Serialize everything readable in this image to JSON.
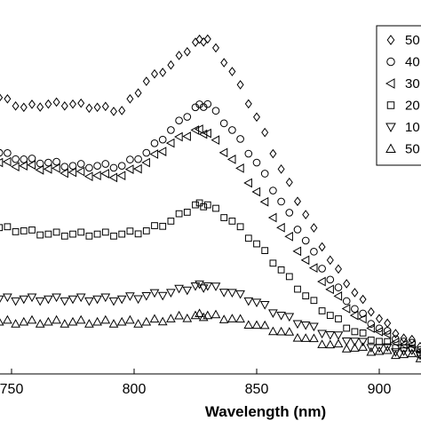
{
  "chart_data": {
    "type": "scatter",
    "xlabel": "Wavelength (nm)",
    "ylabel": "",
    "xlim": [
      733,
      925
    ],
    "ylim": [
      -0.05,
      1.1
    ],
    "grid": false,
    "legend_position": "top-right",
    "x_ticks": [
      {
        "value": 750,
        "label": "750"
      },
      {
        "value": 800,
        "label": "800"
      },
      {
        "value": 850,
        "label": "850"
      },
      {
        "value": 900,
        "label": "900"
      }
    ],
    "series": [
      {
        "name": "50",
        "marker": "diamond",
        "x": [
          735,
          745,
          755,
          765,
          775,
          785,
          795,
          805,
          815,
          825,
          830,
          840,
          850,
          860,
          870,
          880,
          890,
          900,
          910,
          920
        ],
        "y": [
          0.81,
          0.8,
          0.77,
          0.78,
          0.78,
          0.77,
          0.76,
          0.85,
          0.9,
          0.97,
          0.98,
          0.88,
          0.74,
          0.58,
          0.44,
          0.3,
          0.2,
          0.12,
          0.06,
          0.03
        ]
      },
      {
        "name": "40",
        "marker": "circle",
        "x": [
          735,
          745,
          755,
          765,
          775,
          785,
          795,
          805,
          815,
          825,
          830,
          840,
          850,
          860,
          870,
          880,
          890,
          900,
          910,
          920
        ],
        "y": [
          0.62,
          0.63,
          0.61,
          0.6,
          0.59,
          0.59,
          0.59,
          0.63,
          0.7,
          0.77,
          0.78,
          0.7,
          0.6,
          0.48,
          0.36,
          0.24,
          0.15,
          0.09,
          0.05,
          0.02
        ]
      },
      {
        "name": "30",
        "marker": "triangle-left",
        "x": [
          735,
          745,
          755,
          765,
          775,
          785,
          795,
          805,
          815,
          825,
          830,
          840,
          850,
          860,
          870,
          880,
          890,
          900,
          910,
          920
        ],
        "y": [
          0.61,
          0.6,
          0.59,
          0.58,
          0.57,
          0.56,
          0.56,
          0.6,
          0.66,
          0.7,
          0.69,
          0.61,
          0.51,
          0.4,
          0.3,
          0.21,
          0.13,
          0.08,
          0.04,
          0.02
        ]
      },
      {
        "name": "20",
        "marker": "square",
        "x": [
          735,
          745,
          755,
          765,
          775,
          785,
          795,
          805,
          815,
          825,
          830,
          840,
          850,
          860,
          870,
          880,
          890,
          900,
          910,
          920
        ],
        "y": [
          0.4,
          0.4,
          0.39,
          0.38,
          0.38,
          0.38,
          0.38,
          0.39,
          0.42,
          0.47,
          0.47,
          0.42,
          0.35,
          0.27,
          0.19,
          0.13,
          0.08,
          0.05,
          0.03,
          0.01
        ]
      },
      {
        "name": "10",
        "marker": "triangle-down",
        "x": [
          735,
          745,
          755,
          765,
          775,
          785,
          795,
          805,
          815,
          825,
          830,
          840,
          850,
          860,
          870,
          880,
          890,
          900,
          910,
          920
        ],
        "y": [
          0.18,
          0.18,
          0.18,
          0.18,
          0.18,
          0.18,
          0.18,
          0.19,
          0.2,
          0.22,
          0.22,
          0.2,
          0.17,
          0.13,
          0.1,
          0.07,
          0.05,
          0.03,
          0.02,
          0.01
        ]
      },
      {
        "name": "50",
        "marker": "triangle-up",
        "x": [
          735,
          745,
          755,
          765,
          775,
          785,
          795,
          805,
          815,
          825,
          830,
          840,
          850,
          860,
          870,
          880,
          890,
          900,
          910,
          920
        ],
        "y": [
          0.11,
          0.11,
          0.11,
          0.11,
          0.11,
          0.11,
          0.11,
          0.11,
          0.12,
          0.13,
          0.13,
          0.12,
          0.1,
          0.08,
          0.06,
          0.04,
          0.03,
          0.02,
          0.01,
          0.0
        ]
      }
    ]
  }
}
